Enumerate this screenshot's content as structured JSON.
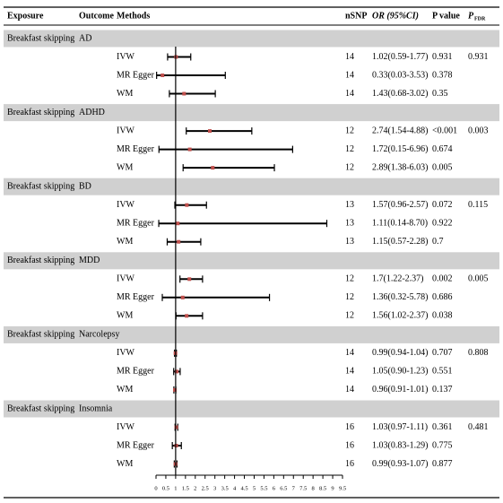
{
  "header": {
    "exposure": "Exposure",
    "outcome": "Outcome",
    "methods": "Methods",
    "nsnp": "nSNP",
    "or_ci": "OR (95%CI)",
    "p_value": "P value",
    "p_fdr": {
      "main": "P",
      "sub": "FDR"
    }
  },
  "groups": [
    {
      "exposure": "Breakfast skipping",
      "outcome": "AD",
      "p_fdr": "0.931",
      "rows": [
        {
          "method": "IVW",
          "nsnp": "14",
          "or_ci": "1.02(0.59-1.77)",
          "or": 1.02,
          "lower": 0.59,
          "upper": 1.77,
          "p": "0.931"
        },
        {
          "method": "MR Egger",
          "nsnp": "14",
          "or_ci": "0.33(0.03-3.53)",
          "or": 0.33,
          "lower": 0.03,
          "upper": 3.53,
          "p": "0.378"
        },
        {
          "method": "WM",
          "nsnp": "14",
          "or_ci": "1.43(0.68-3.02)",
          "or": 1.43,
          "lower": 0.68,
          "upper": 3.02,
          "p": "0.35"
        }
      ]
    },
    {
      "exposure": "Breakfast skipping",
      "outcome": "ADHD",
      "p_fdr": "0.003",
      "rows": [
        {
          "method": "IVW",
          "nsnp": "12",
          "or_ci": "2.74(1.54-4.88)",
          "or": 2.74,
          "lower": 1.54,
          "upper": 4.88,
          "p": "<0.001"
        },
        {
          "method": "MR Egger",
          "nsnp": "12",
          "or_ci": "1.72(0.15-6.96)",
          "or": 1.72,
          "lower": 0.15,
          "upper": 6.96,
          "p": "0.674"
        },
        {
          "method": "WM",
          "nsnp": "12",
          "or_ci": "2.89(1.38-6.03)",
          "or": 2.89,
          "lower": 1.38,
          "upper": 6.03,
          "p": "0.005"
        }
      ]
    },
    {
      "exposure": "Breakfast skipping",
      "outcome": "BD",
      "p_fdr": "0.115",
      "rows": [
        {
          "method": "IVW",
          "nsnp": "13",
          "or_ci": "1.57(0.96-2.57)",
          "or": 1.57,
          "lower": 0.96,
          "upper": 2.57,
          "p": "0.072"
        },
        {
          "method": "MR Egger",
          "nsnp": "13",
          "or_ci": "1.11(0.14-8.70)",
          "or": 1.11,
          "lower": 0.14,
          "upper": 8.7,
          "p": "0.922"
        },
        {
          "method": "WM",
          "nsnp": "13",
          "or_ci": "1.15(0.57-2.28)",
          "or": 1.15,
          "lower": 0.57,
          "upper": 2.28,
          "p": "0.7"
        }
      ]
    },
    {
      "exposure": "Breakfast skipping",
      "outcome": "MDD",
      "p_fdr": "0.005",
      "rows": [
        {
          "method": "IVW",
          "nsnp": "12",
          "or_ci": "1.7(1.22-2.37)",
          "or": 1.7,
          "lower": 1.22,
          "upper": 2.37,
          "p": "0.002"
        },
        {
          "method": "MR Egger",
          "nsnp": "12",
          "or_ci": "1.36(0.32-5.78)",
          "or": 1.36,
          "lower": 0.32,
          "upper": 5.78,
          "p": "0.686"
        },
        {
          "method": "WM",
          "nsnp": "12",
          "or_ci": "1.56(1.02-2.37)",
          "or": 1.56,
          "lower": 1.02,
          "upper": 2.37,
          "p": "0.038"
        }
      ]
    },
    {
      "exposure": "Breakfast skipping",
      "outcome": "Narcolepsy",
      "p_fdr": "0.808",
      "rows": [
        {
          "method": "IVW",
          "nsnp": "14",
          "or_ci": "0.99(0.94-1.04)",
          "or": 0.99,
          "lower": 0.94,
          "upper": 1.04,
          "p": "0.707"
        },
        {
          "method": "MR Egger",
          "nsnp": "14",
          "or_ci": "1.05(0.90-1.23)",
          "or": 1.05,
          "lower": 0.9,
          "upper": 1.23,
          "p": "0.551"
        },
        {
          "method": "WM",
          "nsnp": "14",
          "or_ci": "0.96(0.91-1.01)",
          "or": 0.96,
          "lower": 0.91,
          "upper": 1.01,
          "p": "0.137"
        }
      ]
    },
    {
      "exposure": "Breakfast skipping",
      "outcome": "Insomnia",
      "p_fdr": "0.481",
      "rows": [
        {
          "method": "IVW",
          "nsnp": "16",
          "or_ci": "1.03(0.97-1.11)",
          "or": 1.03,
          "lower": 0.97,
          "upper": 1.11,
          "p": "0.361"
        },
        {
          "method": "MR Egger",
          "nsnp": "16",
          "or_ci": "1.03(0.83-1.29)",
          "or": 1.03,
          "lower": 0.83,
          "upper": 1.29,
          "p": "0.775"
        },
        {
          "method": "WM",
          "nsnp": "16",
          "or_ci": "0.99(0.93-1.07)",
          "or": 0.99,
          "lower": 0.93,
          "upper": 1.07,
          "p": "0.877"
        }
      ]
    }
  ],
  "axis": {
    "xlim": [
      0,
      9.5
    ],
    "xticks": [
      0,
      0.5,
      1,
      1.5,
      2,
      2.5,
      3,
      3.5,
      4,
      4.5,
      5,
      5.5,
      6,
      6.5,
      7,
      7.5,
      8,
      8.5,
      9,
      9.5
    ],
    "reference": 1,
    "marker_color": "#c0504d",
    "band_color": "#d0d0d0"
  }
}
